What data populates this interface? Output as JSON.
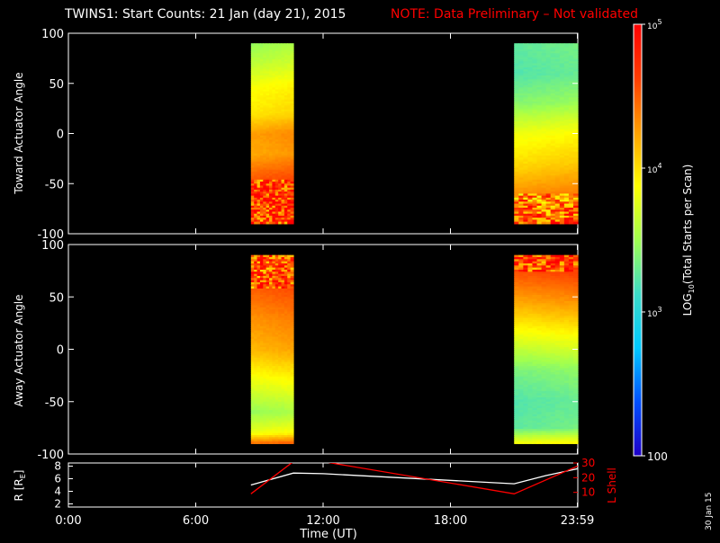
{
  "title": {
    "main": "TWINS1: Start Counts: 21 Jan (day  21), 2015",
    "note": "NOTE: Data Preliminary – Not validated",
    "note_color": "#ff0000"
  },
  "plot_date": "30 Jan 15",
  "chart_data": [
    {
      "type": "heatmap",
      "ylabel": "Toward Actuator Angle",
      "ylim": [
        -100,
        100
      ],
      "y_ticks": [
        {
          "value": 100,
          "label": "100"
        },
        {
          "value": 50,
          "label": "50"
        },
        {
          "value": 0,
          "label": "0"
        },
        {
          "value": -50,
          "label": "-50"
        },
        {
          "value": -100,
          "label": "-100"
        }
      ],
      "data_angle_range": [
        -90,
        90
      ],
      "blocks": [
        {
          "x_start_hr": 8.6,
          "x_end_hr": 10.6,
          "profile": [
            {
              "angle": 90,
              "log": 3.5
            },
            {
              "angle": 70,
              "log": 3.65
            },
            {
              "angle": 45,
              "log": 3.9
            },
            {
              "angle": 20,
              "log": 4.0
            },
            {
              "angle": 0,
              "log": 4.3
            },
            {
              "angle": -20,
              "log": 4.25
            },
            {
              "angle": -40,
              "log": 4.5
            },
            {
              "angle": -60,
              "log": 4.7
            },
            {
              "angle": -90,
              "log": 4.6
            }
          ],
          "noisy_angle_range": [
            -90,
            -45
          ]
        },
        {
          "x_start_hr": 21.0,
          "x_end_hr": 24.0,
          "profile": [
            {
              "angle": 90,
              "log": 3.3
            },
            {
              "angle": 60,
              "log": 3.25
            },
            {
              "angle": 30,
              "log": 3.45
            },
            {
              "angle": 0,
              "log": 3.85
            },
            {
              "angle": -30,
              "log": 4.05
            },
            {
              "angle": -60,
              "log": 4.35
            },
            {
              "angle": -90,
              "log": 4.55
            }
          ],
          "noisy_angle_range": [
            -90,
            -60
          ]
        }
      ]
    },
    {
      "type": "heatmap",
      "ylabel": "Away Actuator Angle",
      "ylim": [
        -100,
        100
      ],
      "y_ticks": [
        {
          "value": 100,
          "label": "100"
        },
        {
          "value": 50,
          "label": "50"
        },
        {
          "value": 0,
          "label": "0"
        },
        {
          "value": -50,
          "label": "-50"
        },
        {
          "value": -100,
          "label": "-100"
        }
      ],
      "data_angle_range": [
        -90,
        90
      ],
      "blocks": [
        {
          "x_start_hr": 8.6,
          "x_end_hr": 10.6,
          "profile": [
            {
              "angle": 90,
              "log": 4.6
            },
            {
              "angle": 60,
              "log": 4.55
            },
            {
              "angle": 30,
              "log": 4.35
            },
            {
              "angle": 0,
              "log": 4.2
            },
            {
              "angle": -30,
              "log": 3.85
            },
            {
              "angle": -60,
              "log": 3.5
            },
            {
              "angle": -80,
              "log": 3.85
            },
            {
              "angle": -90,
              "log": 4.5
            }
          ],
          "noisy_angle_range": [
            60,
            90
          ]
        },
        {
          "x_start_hr": 21.0,
          "x_end_hr": 24.0,
          "profile": [
            {
              "angle": 90,
              "log": 4.7
            },
            {
              "angle": 70,
              "log": 4.55
            },
            {
              "angle": 40,
              "log": 4.2
            },
            {
              "angle": 10,
              "log": 3.8
            },
            {
              "angle": -20,
              "log": 3.4
            },
            {
              "angle": -50,
              "log": 3.25
            },
            {
              "angle": -75,
              "log": 3.3
            },
            {
              "angle": -90,
              "log": 3.9
            }
          ],
          "noisy_angle_range": [
            75,
            90
          ]
        }
      ]
    },
    {
      "type": "line",
      "ylabel": "R [R",
      "ylabel_sub": "E",
      "ylabel_close": "]",
      "ylim": [
        1.5,
        8.5
      ],
      "y_ticks": [
        {
          "value": 2,
          "label": "2"
        },
        {
          "value": 4,
          "label": "4"
        },
        {
          "value": 6,
          "label": "6"
        },
        {
          "value": 8,
          "label": "8"
        }
      ],
      "y2label": "L Shell",
      "y2lim": [
        0,
        30
      ],
      "y2_ticks": [
        {
          "value": 10,
          "label": "10"
        },
        {
          "value": 20,
          "label": "20"
        },
        {
          "value": 30,
          "label": "30"
        }
      ],
      "series": [
        {
          "name": "R",
          "color": "#ffffff",
          "axis": "left",
          "points": [
            [
              8.6,
              5.0
            ],
            [
              10.6,
              6.9
            ],
            [
              12.0,
              6.8
            ],
            [
              21.0,
              5.2
            ],
            [
              22.5,
              6.5
            ],
            [
              24.0,
              7.6
            ]
          ]
        },
        {
          "name": "L Shell",
          "color": "#ff0000",
          "axis": "right",
          "points": [
            [
              8.6,
              9
            ],
            [
              10.6,
              31
            ],
            [
              12.0,
              31
            ],
            [
              21.0,
              9
            ],
            [
              24.0,
              28
            ]
          ]
        }
      ]
    }
  ],
  "x_axis": {
    "label": "Time (UT)",
    "xlim": [
      0,
      24
    ],
    "ticks": [
      {
        "value": 0,
        "label": "0:00"
      },
      {
        "value": 6,
        "label": "6:00"
      },
      {
        "value": 12,
        "label": "12:00"
      },
      {
        "value": 18,
        "label": "18:00"
      },
      {
        "value": 23.98,
        "label": "23:59"
      }
    ]
  },
  "colorbar": {
    "label_pre": "LOG",
    "label_sub": "10",
    "label_post": "(Total Starts per Scan)",
    "log_min": 2,
    "log_max": 5,
    "ticks": [
      {
        "log": 5,
        "base": "10",
        "exp": "5"
      },
      {
        "log": 4,
        "base": "10",
        "exp": "4"
      },
      {
        "log": 3,
        "base": "10",
        "exp": "3"
      },
      {
        "log": 2,
        "base": "100",
        "exp": ""
      }
    ],
    "colors": [
      "#1e00c8",
      "#0050ff",
      "#00c8ff",
      "#3cdcc8",
      "#a0ff50",
      "#ffff00",
      "#ffa000",
      "#ff3c00",
      "#ff0000"
    ]
  }
}
